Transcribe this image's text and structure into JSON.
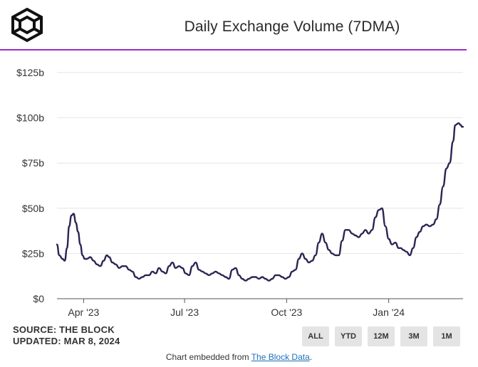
{
  "header": {
    "title": "Daily Exchange Volume (7DMA)"
  },
  "source": {
    "line1": "SOURCE: THE BLOCK",
    "line2": "UPDATED: MAR 8, 2024"
  },
  "range_buttons": [
    "ALL",
    "YTD",
    "12M",
    "3M",
    "1M"
  ],
  "footer": {
    "prefix": "Chart embedded from ",
    "link_text": "The Block Data",
    "suffix": "."
  },
  "colors": {
    "line": "#2b2452",
    "accent_rule": "#9b2cc9",
    "grid": "#e6e6e6"
  },
  "chart_data": {
    "type": "line",
    "title": "Daily Exchange Volume (7DMA)",
    "xlabel": "",
    "ylabel": "",
    "ylim": [
      0,
      125
    ],
    "y_ticks": [
      0,
      25,
      50,
      75,
      100,
      125
    ],
    "y_tick_labels": [
      "$0",
      "$25b",
      "$50b",
      "$75b",
      "$100b",
      "$125b"
    ],
    "x_ticks": [
      "2023-04-01",
      "2023-07-01",
      "2023-10-01",
      "2024-01-01"
    ],
    "x_tick_labels": [
      "Apr '23",
      "Jul '23",
      "Oct '23",
      "Jan '24"
    ],
    "x_range": [
      "2023-03-08",
      "2024-03-08"
    ],
    "grid": true,
    "series": [
      {
        "x": [
          "2023-03-08",
          "2023-03-10",
          "2023-03-13",
          "2023-03-15",
          "2023-03-17",
          "2023-03-19",
          "2023-03-21",
          "2023-03-23",
          "2023-03-25",
          "2023-03-27",
          "2023-03-29",
          "2023-03-31",
          "2023-04-02",
          "2023-04-04",
          "2023-04-07",
          "2023-04-10",
          "2023-04-13",
          "2023-04-16",
          "2023-04-19",
          "2023-04-22",
          "2023-04-24",
          "2023-04-27",
          "2023-04-30",
          "2023-05-03",
          "2023-05-06",
          "2023-05-09",
          "2023-05-12",
          "2023-05-15",
          "2023-05-18",
          "2023-05-21",
          "2023-05-24",
          "2023-05-27",
          "2023-05-30",
          "2023-06-02",
          "2023-06-05",
          "2023-06-08",
          "2023-06-11",
          "2023-06-14",
          "2023-06-17",
          "2023-06-20",
          "2023-06-23",
          "2023-06-26",
          "2023-06-29",
          "2023-07-02",
          "2023-07-05",
          "2023-07-08",
          "2023-07-11",
          "2023-07-14",
          "2023-07-17",
          "2023-07-20",
          "2023-07-23",
          "2023-07-26",
          "2023-07-29",
          "2023-08-01",
          "2023-08-04",
          "2023-08-07",
          "2023-08-10",
          "2023-08-13",
          "2023-08-16",
          "2023-08-19",
          "2023-08-22",
          "2023-08-25",
          "2023-08-28",
          "2023-08-31",
          "2023-09-03",
          "2023-09-06",
          "2023-09-09",
          "2023-09-12",
          "2023-09-15",
          "2023-09-18",
          "2023-09-21",
          "2023-09-24",
          "2023-09-27",
          "2023-09-30",
          "2023-10-03",
          "2023-10-06",
          "2023-10-09",
          "2023-10-12",
          "2023-10-15",
          "2023-10-18",
          "2023-10-21",
          "2023-10-24",
          "2023-10-27",
          "2023-10-30",
          "2023-11-02",
          "2023-11-05",
          "2023-11-08",
          "2023-11-11",
          "2023-11-14",
          "2023-11-17",
          "2023-11-20",
          "2023-11-23",
          "2023-11-26",
          "2023-11-29",
          "2023-12-02",
          "2023-12-05",
          "2023-12-08",
          "2023-12-11",
          "2023-12-14",
          "2023-12-17",
          "2023-12-20",
          "2023-12-23",
          "2023-12-26",
          "2023-12-29",
          "2024-01-01",
          "2024-01-04",
          "2024-01-07",
          "2024-01-10",
          "2024-01-12",
          "2024-01-14",
          "2024-01-17",
          "2024-01-20",
          "2024-01-23",
          "2024-01-26",
          "2024-01-29",
          "2024-02-01",
          "2024-02-04",
          "2024-02-07",
          "2024-02-10",
          "2024-02-13",
          "2024-02-16",
          "2024-02-19",
          "2024-02-22",
          "2024-02-25",
          "2024-02-28",
          "2024-03-01",
          "2024-03-04",
          "2024-03-06",
          "2024-03-07",
          "2024-03-08"
        ],
        "values": [
          30,
          24,
          22,
          21,
          28,
          40,
          46,
          47,
          42,
          37,
          30,
          24,
          22,
          22,
          23,
          21,
          19,
          18,
          21,
          24,
          23,
          20,
          19,
          17,
          18,
          18,
          16,
          15,
          12,
          11,
          12,
          13,
          13,
          15,
          14,
          17,
          15,
          14,
          18,
          20,
          17,
          18,
          17,
          14,
          13,
          18,
          20,
          16,
          15,
          14,
          13,
          14,
          15,
          14,
          13,
          12,
          11,
          16,
          17,
          13,
          11,
          10,
          11,
          12,
          12,
          11,
          12,
          11,
          10,
          11,
          13,
          13,
          12,
          11,
          12,
          15,
          16,
          22,
          25,
          22,
          20,
          21,
          24,
          31,
          36,
          31,
          27,
          25,
          24,
          24,
          32,
          38,
          38,
          36,
          35,
          34,
          36,
          38,
          36,
          38,
          45,
          49,
          50,
          40,
          33,
          30,
          31,
          28,
          28,
          27,
          26,
          24,
          28,
          34,
          37,
          40,
          41,
          40,
          41,
          44,
          52,
          62,
          72,
          75,
          87,
          96,
          97,
          96,
          95,
          95
        ]
      }
    ]
  }
}
